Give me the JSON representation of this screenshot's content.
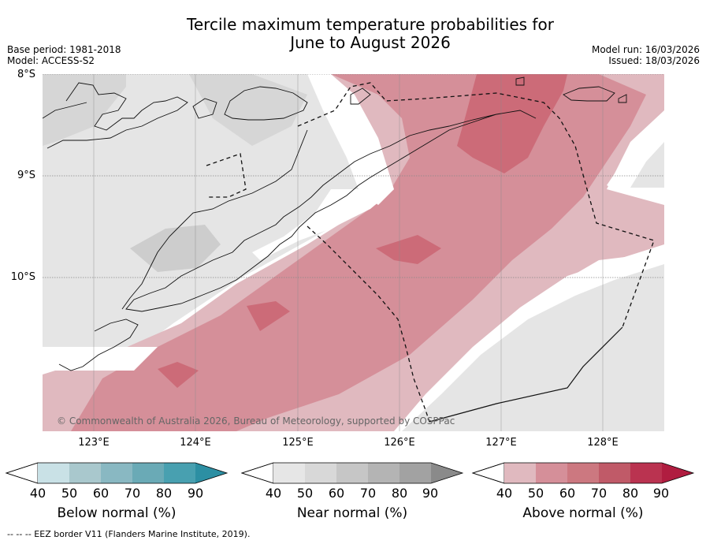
{
  "header": {
    "title_line1": "Tercile maximum temperature probabilities for",
    "title_line2": "June to August 2026",
    "base_period": "Base period: 1981-2018",
    "model": "Model: ACCESS-S2",
    "model_run": "Model run: 16/03/2026",
    "issued": "Issued: 18/03/2026"
  },
  "map": {
    "lat_labels": [
      "8°S",
      "9°S",
      "10°S"
    ],
    "lon_labels": [
      "123°E",
      "124°E",
      "125°E",
      "126°E",
      "127°E",
      "128°E"
    ],
    "copyright": "© Commonwealth of Australia 2026, Bureau of Meteorology, supported by COSPPac"
  },
  "colorbars": [
    {
      "title": "Below normal (%)",
      "ticks": [
        "40",
        "50",
        "60",
        "70",
        "80",
        "90"
      ],
      "colors": [
        "#c9e1e6",
        "#a9c8cd",
        "#89b8c2",
        "#6aaab6",
        "#48a0b0",
        "#2c8fa3"
      ]
    },
    {
      "title": "Near normal (%)",
      "ticks": [
        "40",
        "50",
        "60",
        "70",
        "80",
        "90"
      ],
      "colors": [
        "#e6e6e6",
        "#d8d8d8",
        "#c6c6c6",
        "#b4b4b4",
        "#a2a2a2",
        "#8a8a8a"
      ]
    },
    {
      "title": "Above normal (%)",
      "ticks": [
        "40",
        "50",
        "60",
        "70",
        "80",
        "90"
      ],
      "colors": [
        "#e0b9bf",
        "#d58f99",
        "#cc7880",
        "#c05a68",
        "#ba3350",
        "#b01d40"
      ]
    }
  ],
  "footer": "--  --  -- EEZ border V11 (Flanders Marine Institute, 2019)."
}
